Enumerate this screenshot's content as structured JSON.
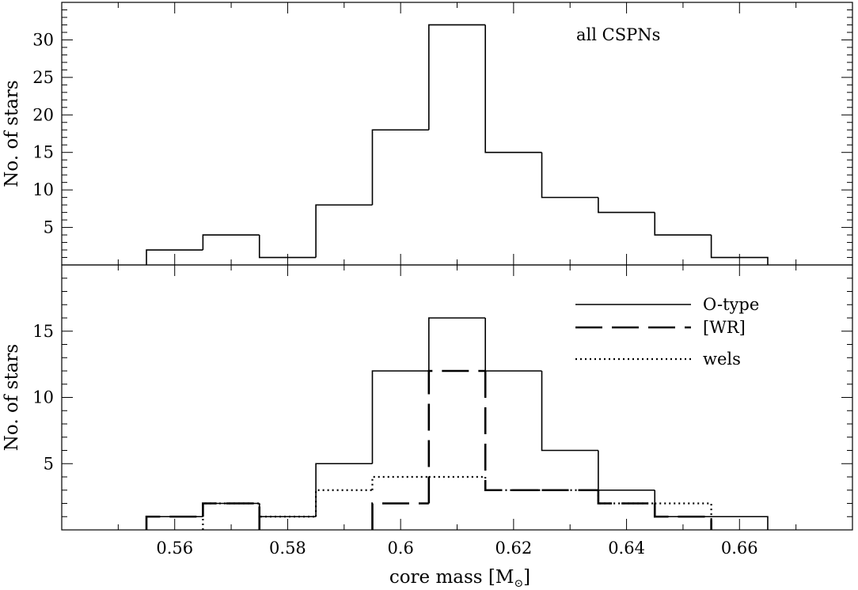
{
  "chart_data": [
    {
      "type": "histogram",
      "panel": "top",
      "annotation": "all CSPNs",
      "ylabel": "No. of stars",
      "xlim": [
        0.54,
        0.68
      ],
      "ylim": [
        0,
        35
      ],
      "yticks": [
        5,
        10,
        15,
        20,
        25,
        30
      ],
      "bin_edges": [
        0.555,
        0.565,
        0.575,
        0.585,
        0.595,
        0.605,
        0.615,
        0.625,
        0.635,
        0.645,
        0.655,
        0.665
      ],
      "series": [
        {
          "name": "",
          "style": "solid",
          "values": [
            2,
            4,
            1,
            8,
            18,
            32,
            15,
            9,
            7,
            4,
            1
          ]
        }
      ]
    },
    {
      "type": "histogram",
      "panel": "bottom",
      "ylabel": "No. of stars",
      "xlabel": "core mass [M",
      "xlabel_sub": "⊙",
      "xlabel_end": "]",
      "xlim": [
        0.54,
        0.68
      ],
      "ylim": [
        0,
        20
      ],
      "yticks": [
        5,
        10,
        15
      ],
      "xticks": [
        0.56,
        0.58,
        0.6,
        0.62,
        0.64,
        0.66
      ],
      "xtick_labels": [
        "0.56",
        "0.58",
        "0.6",
        "0.62",
        "0.64",
        "0.66"
      ],
      "bin_edges": [
        0.555,
        0.565,
        0.575,
        0.585,
        0.595,
        0.605,
        0.615,
        0.625,
        0.635,
        0.645,
        0.655,
        0.665
      ],
      "legend_position": "top-right",
      "series": [
        {
          "name": "O-type",
          "style": "solid",
          "values": [
            1,
            2,
            1,
            5,
            12,
            16,
            12,
            6,
            3,
            1,
            1
          ]
        },
        {
          "name": "[WR]",
          "style": "dashed",
          "values": [
            1,
            2,
            0,
            0,
            2,
            12,
            3,
            3,
            2,
            1,
            0
          ]
        },
        {
          "name": "wels",
          "style": "dotted",
          "values": [
            0,
            2,
            1,
            3,
            4,
            4,
            3,
            3,
            2,
            2,
            0
          ]
        }
      ]
    }
  ]
}
